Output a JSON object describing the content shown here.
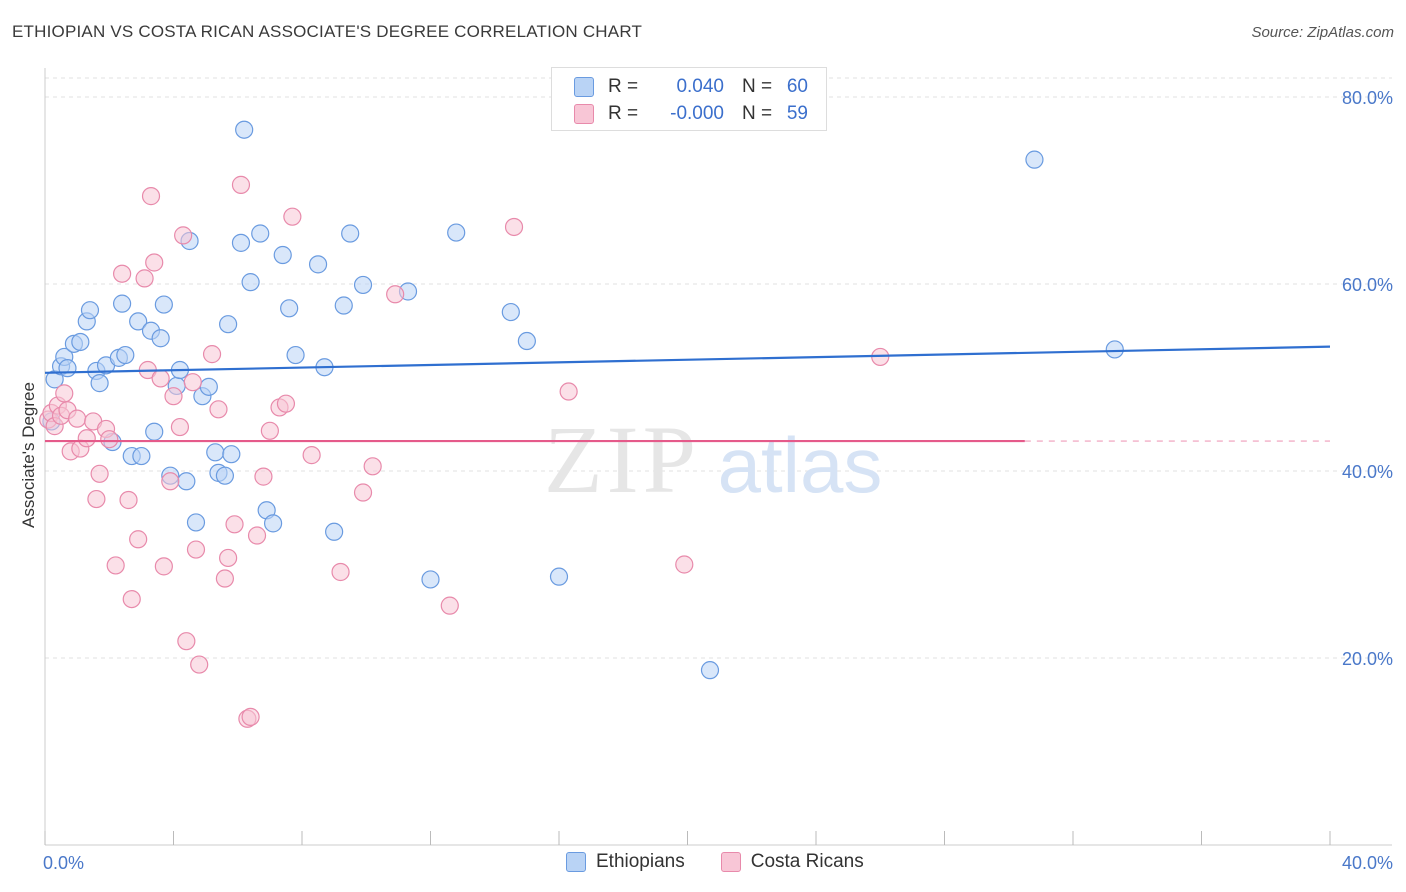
{
  "title": "ETHIOPIAN VS COSTA RICAN ASSOCIATE'S DEGREE CORRELATION CHART",
  "source": "Source: ZipAtlas.com",
  "watermark": {
    "zip": "ZIP",
    "atlas": "atlas"
  },
  "legend": {
    "rows": [
      {
        "r_label": "R =",
        "r_value": "0.040",
        "n_label": "N =",
        "n_value": "60",
        "fill": "#b9d3f5",
        "stroke": "#6a9be0"
      },
      {
        "r_label": "R =",
        "r_value": "-0.000",
        "n_label": "N =",
        "n_value": "59",
        "fill": "#f8c6d6",
        "stroke": "#e88aab"
      }
    ]
  },
  "bottom_legend": [
    {
      "label": "Ethiopians",
      "fill": "#b9d3f5",
      "stroke": "#6a9be0"
    },
    {
      "label": "Costa Ricans",
      "fill": "#f8c6d6",
      "stroke": "#e88aab"
    }
  ],
  "chart_data": {
    "type": "scatter",
    "title": "ETHIOPIAN VS COSTA RICAN ASSOCIATE'S DEGREE CORRELATION CHART",
    "xlabel": "",
    "ylabel": "Associate's Degree",
    "xlim": [
      0,
      40
    ],
    "ylim": [
      0,
      80
    ],
    "x_ticks": [
      0,
      40
    ],
    "x_tick_labels": [
      "0.0%",
      "40.0%"
    ],
    "y_ticks": [
      20,
      40,
      60,
      80
    ],
    "y_tick_labels": [
      "20.0%",
      "40.0%",
      "60.0%",
      "80.0%"
    ],
    "grid": true,
    "series": [
      {
        "name": "Ethiopians",
        "color": "#6a9be0",
        "fill": "#b9d3f5",
        "trend": {
          "x": [
            0,
            40
          ],
          "y": [
            50.5,
            53.3
          ],
          "color": "#2f6fd0"
        },
        "points": [
          [
            0.3,
            49.8
          ],
          [
            0.5,
            51.2
          ],
          [
            0.6,
            52.2
          ],
          [
            0.7,
            51.0
          ],
          [
            0.9,
            53.6
          ],
          [
            1.1,
            53.8
          ],
          [
            1.3,
            56.0
          ],
          [
            1.4,
            57.2
          ],
          [
            1.6,
            50.7
          ],
          [
            1.7,
            49.4
          ],
          [
            1.9,
            51.3
          ],
          [
            2.1,
            43.1
          ],
          [
            2.3,
            52.1
          ],
          [
            2.4,
            57.9
          ],
          [
            2.5,
            52.4
          ],
          [
            2.7,
            41.6
          ],
          [
            2.9,
            56.0
          ],
          [
            3.0,
            41.6
          ],
          [
            3.3,
            55.0
          ],
          [
            3.4,
            44.2
          ],
          [
            3.6,
            54.2
          ],
          [
            3.7,
            57.8
          ],
          [
            3.9,
            39.5
          ],
          [
            4.1,
            49.1
          ],
          [
            4.2,
            50.8
          ],
          [
            4.4,
            38.9
          ],
          [
            4.5,
            64.6
          ],
          [
            4.7,
            34.5
          ],
          [
            4.9,
            48.0
          ],
          [
            5.1,
            49.0
          ],
          [
            5.3,
            42.0
          ],
          [
            5.4,
            39.8
          ],
          [
            5.6,
            39.5
          ],
          [
            5.7,
            55.7
          ],
          [
            5.8,
            41.8
          ],
          [
            6.1,
            64.4
          ],
          [
            6.2,
            76.5
          ],
          [
            6.4,
            60.2
          ],
          [
            6.7,
            65.4
          ],
          [
            6.9,
            35.8
          ],
          [
            7.1,
            34.4
          ],
          [
            7.4,
            63.1
          ],
          [
            7.6,
            57.4
          ],
          [
            7.8,
            52.4
          ],
          [
            8.5,
            62.1
          ],
          [
            8.7,
            51.1
          ],
          [
            9.0,
            33.5
          ],
          [
            9.3,
            57.7
          ],
          [
            9.5,
            65.4
          ],
          [
            9.9,
            59.9
          ],
          [
            11.3,
            59.2
          ],
          [
            12.0,
            28.4
          ],
          [
            12.8,
            65.5
          ],
          [
            14.5,
            57.0
          ],
          [
            15.0,
            53.9
          ],
          [
            16.0,
            28.7
          ],
          [
            20.7,
            18.7
          ],
          [
            30.8,
            73.3
          ],
          [
            33.3,
            53.0
          ],
          [
            0.2,
            45.3
          ]
        ]
      },
      {
        "name": "Costa Ricans",
        "color": "#e88aab",
        "fill": "#f8c6d6",
        "trend": {
          "x": [
            0,
            30.5
          ],
          "y": [
            43.2,
            43.2
          ],
          "dashed_to": 40,
          "color": "#e55a8a"
        },
        "points": [
          [
            0.1,
            45.5
          ],
          [
            0.2,
            46.2
          ],
          [
            0.3,
            44.8
          ],
          [
            0.4,
            47.0
          ],
          [
            0.5,
            45.9
          ],
          [
            0.6,
            48.3
          ],
          [
            0.7,
            46.5
          ],
          [
            0.8,
            42.1
          ],
          [
            1.0,
            45.6
          ],
          [
            1.1,
            42.4
          ],
          [
            1.3,
            43.5
          ],
          [
            1.5,
            45.3
          ],
          [
            1.6,
            37.0
          ],
          [
            1.7,
            39.7
          ],
          [
            1.9,
            44.5
          ],
          [
            2.0,
            43.4
          ],
          [
            2.2,
            29.9
          ],
          [
            2.4,
            61.1
          ],
          [
            2.6,
            36.9
          ],
          [
            2.7,
            26.3
          ],
          [
            2.9,
            32.7
          ],
          [
            3.1,
            60.6
          ],
          [
            3.2,
            50.8
          ],
          [
            3.3,
            69.4
          ],
          [
            3.4,
            62.3
          ],
          [
            3.6,
            49.9
          ],
          [
            3.7,
            29.8
          ],
          [
            3.9,
            38.9
          ],
          [
            4.0,
            48.0
          ],
          [
            4.2,
            44.7
          ],
          [
            4.3,
            65.2
          ],
          [
            4.4,
            21.8
          ],
          [
            4.6,
            49.5
          ],
          [
            4.7,
            31.6
          ],
          [
            4.8,
            19.3
          ],
          [
            5.2,
            52.5
          ],
          [
            5.4,
            46.6
          ],
          [
            5.6,
            28.5
          ],
          [
            5.7,
            30.7
          ],
          [
            5.9,
            34.3
          ],
          [
            6.1,
            70.6
          ],
          [
            6.3,
            13.5
          ],
          [
            6.4,
            13.7
          ],
          [
            6.6,
            33.1
          ],
          [
            6.8,
            39.4
          ],
          [
            7.0,
            44.3
          ],
          [
            7.3,
            46.8
          ],
          [
            7.5,
            47.2
          ],
          [
            7.7,
            67.2
          ],
          [
            8.3,
            41.7
          ],
          [
            9.2,
            29.2
          ],
          [
            9.9,
            37.7
          ],
          [
            10.2,
            40.5
          ],
          [
            10.9,
            58.9
          ],
          [
            12.6,
            25.6
          ],
          [
            14.6,
            66.1
          ],
          [
            16.3,
            48.5
          ],
          [
            19.9,
            30.0
          ],
          [
            26.0,
            52.2
          ]
        ]
      }
    ]
  }
}
